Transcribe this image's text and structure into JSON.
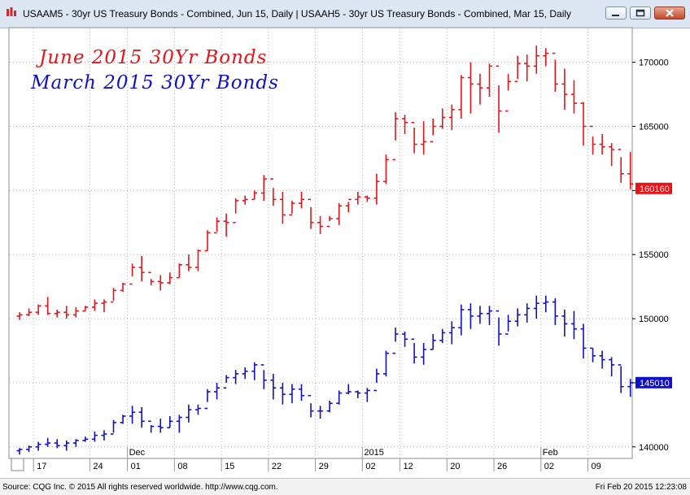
{
  "window": {
    "title": "USAAM5 - 30yr US Treasury Bonds - Combined, Jun 15, Daily  |  USAAH5 - 30yr US Treasury Bonds - Combined, Mar 15, Daily",
    "icon": "cqg-chart-icon",
    "buttons": [
      "minimize-icon",
      "maximize-icon",
      "close-icon"
    ]
  },
  "footer": {
    "source": "Source: CQG Inc. © 2015 All rights reserved worldwide. http://www.cqg.com.",
    "timestamp": "Fri Feb 20 2015 12:23:08"
  },
  "chart_data": {
    "type": "ohlc",
    "title": "",
    "annotations": [
      {
        "text": "June 2015 30Yr Bonds",
        "color": "#e8141a"
      },
      {
        "text": "March 2015 30Yr Bonds",
        "color": "#1010c8"
      }
    ],
    "y_axis": {
      "side": "right",
      "ylim": [
        139100,
        172700
      ],
      "ticks": [
        140000,
        145000,
        150000,
        155000,
        160000,
        165000,
        170000
      ],
      "tick_labels": [
        "140000",
        "145000",
        "150000",
        "155000",
        "160000",
        "165000",
        "170000"
      ]
    },
    "x_axis": {
      "day_labels": [
        "17",
        "24",
        "01",
        "08",
        "15",
        "22",
        "29",
        "02",
        "12",
        "20",
        "26",
        "02",
        "09",
        "17"
      ],
      "month_labels": [
        "Dec",
        "2015",
        "Feb"
      ],
      "session_count": 65
    },
    "grid": true,
    "colors": {
      "june": "#e8141a",
      "march": "#1010c8",
      "background": "#ffffff",
      "grid": "#b4b4b4"
    },
    "series": [
      {
        "name": "USAAM5",
        "last_value_label": "160160",
        "last_value": 160160,
        "bars": [
          [
            150200,
            150500,
            149900,
            150300
          ],
          [
            150300,
            150800,
            150200,
            150500
          ],
          [
            150500,
            151100,
            150300,
            151000
          ],
          [
            151000,
            151700,
            150300,
            150400
          ],
          [
            150400,
            150700,
            150100,
            150500
          ],
          [
            150500,
            151000,
            150000,
            150300
          ],
          [
            150300,
            150900,
            150100,
            150600
          ],
          [
            150600,
            151000,
            150600,
            150900
          ],
          [
            150900,
            151500,
            150600,
            151200
          ],
          [
            151200,
            151500,
            150500,
            151300
          ],
          [
            151300,
            152400,
            151400,
            152200
          ],
          [
            152200,
            152800,
            152100,
            152700
          ],
          [
            152700,
            154300,
            153300,
            154000
          ],
          [
            154000,
            154900,
            152900,
            153600
          ],
          [
            153600,
            153100,
            152600,
            152900
          ],
          [
            152900,
            153400,
            152200,
            152800
          ],
          [
            152800,
            153600,
            152700,
            153200
          ],
          [
            153200,
            154300,
            153200,
            154200
          ],
          [
            154200,
            155000,
            153700,
            154000
          ],
          [
            154000,
            155400,
            153700,
            155300
          ],
          [
            155300,
            156900,
            155300,
            156700
          ],
          [
            156700,
            157900,
            156800,
            157600
          ],
          [
            157600,
            158200,
            156400,
            157500
          ],
          [
            157500,
            159400,
            158200,
            159200
          ],
          [
            159200,
            159600,
            158900,
            159300
          ],
          [
            159300,
            160000,
            159300,
            159800
          ],
          [
            159800,
            161200,
            159200,
            160900
          ],
          [
            160900,
            160200,
            158800,
            159300
          ],
          [
            159300,
            159900,
            157400,
            158100
          ],
          [
            158100,
            159200,
            158200,
            159000
          ],
          [
            159000,
            159900,
            158600,
            159300
          ],
          [
            159300,
            158700,
            157000,
            157500
          ],
          [
            157500,
            158000,
            156600,
            157200
          ],
          [
            157200,
            158000,
            157600,
            157800
          ],
          [
            157800,
            159000,
            157300,
            158800
          ],
          [
            158800,
            159100,
            158300,
            159300
          ],
          [
            159300,
            159900,
            158900,
            159500
          ],
          [
            159500,
            159600,
            159100,
            159400
          ],
          [
            159400,
            161300,
            158900,
            160700
          ],
          [
            160700,
            162800,
            160500,
            162400
          ],
          [
            162400,
            166100,
            163900,
            165600
          ],
          [
            165600,
            165900,
            164400,
            165300
          ],
          [
            165300,
            164900,
            162900,
            163600
          ],
          [
            163600,
            165400,
            162800,
            163800
          ],
          [
            163800,
            165600,
            164300,
            165000
          ],
          [
            165000,
            166400,
            164800,
            165700
          ],
          [
            165700,
            166700,
            164700,
            166300
          ],
          [
            166300,
            169000,
            165600,
            168800
          ],
          [
            168800,
            170000,
            166000,
            168300
          ],
          [
            168300,
            169100,
            166700,
            168000
          ],
          [
            168000,
            169900,
            167300,
            169700
          ],
          [
            169700,
            168200,
            164500,
            166200
          ],
          [
            166200,
            169100,
            167800,
            168500
          ],
          [
            168500,
            170500,
            168700,
            169900
          ],
          [
            169900,
            170600,
            168500,
            169700
          ],
          [
            169700,
            171300,
            169100,
            170500
          ],
          [
            170500,
            171100,
            169700,
            170700
          ],
          [
            170700,
            170200,
            167700,
            168300
          ],
          [
            168300,
            169500,
            166300,
            167500
          ],
          [
            167500,
            168600,
            166000,
            166800
          ],
          [
            166800,
            166900,
            163500,
            165000
          ],
          [
            165000,
            164200,
            162800,
            163600
          ],
          [
            163600,
            164400,
            162800,
            163400
          ],
          [
            163400,
            163700,
            161900,
            163200
          ],
          [
            163200,
            162600,
            160600,
            161300
          ],
          [
            161300,
            163000,
            160100,
            160500
          ]
        ]
      },
      {
        "name": "USAAH5",
        "last_value_label": "145010",
        "last_value": 145010,
        "bars": [
          [
            139700,
            139900,
            139400,
            139800
          ],
          [
            139800,
            140100,
            139600,
            140000
          ],
          [
            140000,
            140400,
            139700,
            140200
          ],
          [
            140200,
            140700,
            140000,
            140300
          ],
          [
            140300,
            140600,
            139900,
            140100
          ],
          [
            140100,
            140500,
            139700,
            140300
          ],
          [
            140300,
            140600,
            140000,
            140500
          ],
          [
            140500,
            140800,
            140400,
            140600
          ],
          [
            140600,
            141200,
            140400,
            140900
          ],
          [
            140900,
            141300,
            140500,
            141000
          ],
          [
            141000,
            142100,
            141100,
            141900
          ],
          [
            141900,
            142500,
            141800,
            142400
          ],
          [
            142400,
            143200,
            141800,
            142700
          ],
          [
            142700,
            143100,
            141500,
            142000
          ],
          [
            142000,
            141700,
            141100,
            141600
          ],
          [
            141600,
            142200,
            141100,
            141500
          ],
          [
            141500,
            142400,
            141500,
            142000
          ],
          [
            142000,
            142500,
            141100,
            142300
          ],
          [
            142300,
            143300,
            141900,
            142900
          ],
          [
            142900,
            143300,
            142500,
            143000
          ],
          [
            143000,
            144500,
            143500,
            144300
          ],
          [
            144300,
            145000,
            143700,
            144600
          ],
          [
            144600,
            145600,
            145000,
            145400
          ],
          [
            145400,
            146000,
            144900,
            145700
          ],
          [
            145700,
            146200,
            145300,
            145900
          ],
          [
            145900,
            146600,
            145200,
            146400
          ],
          [
            146400,
            146000,
            144500,
            145200
          ],
          [
            145200,
            145700,
            143700,
            144600
          ],
          [
            144600,
            145000,
            143300,
            144100
          ],
          [
            144100,
            144900,
            143400,
            144500
          ],
          [
            144500,
            144900,
            143600,
            144000
          ],
          [
            144000,
            143400,
            142300,
            142800
          ],
          [
            142800,
            143200,
            142200,
            142800
          ],
          [
            142800,
            143600,
            142700,
            143400
          ],
          [
            143400,
            144400,
            143300,
            144200
          ],
          [
            144200,
            144900,
            144100,
            144300
          ],
          [
            144300,
            144400,
            143800,
            144200
          ],
          [
            144200,
            144600,
            143500,
            144400
          ],
          [
            144400,
            146100,
            145000,
            145700
          ],
          [
            145700,
            147500,
            145500,
            147300
          ],
          [
            147300,
            149300,
            148200,
            148800
          ],
          [
            148800,
            149000,
            147800,
            148400
          ],
          [
            148400,
            148100,
            146500,
            147000
          ],
          [
            147000,
            148100,
            146400,
            147600
          ],
          [
            147600,
            148800,
            147600,
            148300
          ],
          [
            148300,
            149200,
            148100,
            148900
          ],
          [
            148900,
            149800,
            148000,
            149300
          ],
          [
            149300,
            151100,
            148700,
            150700
          ],
          [
            150700,
            151200,
            149200,
            150200
          ],
          [
            150200,
            151000,
            149600,
            150400
          ],
          [
            150400,
            151000,
            149500,
            150600
          ],
          [
            150600,
            150100,
            147900,
            148800
          ],
          [
            148800,
            150300,
            149000,
            149800
          ],
          [
            149800,
            150800,
            149400,
            150300
          ],
          [
            150300,
            151200,
            149700,
            150800
          ],
          [
            150800,
            151800,
            150000,
            151200
          ],
          [
            151200,
            151800,
            150500,
            151300
          ],
          [
            151300,
            151600,
            149500,
            150200
          ],
          [
            150200,
            150700,
            148600,
            149600
          ],
          [
            149600,
            150600,
            148400,
            149200
          ],
          [
            149200,
            149600,
            146900,
            147700
          ],
          [
            147700,
            147700,
            146600,
            147100
          ],
          [
            147100,
            147500,
            146100,
            146800
          ],
          [
            146800,
            147000,
            145500,
            146400
          ],
          [
            146400,
            146300,
            144200,
            144700
          ],
          [
            144700,
            145300,
            143900,
            145000
          ]
        ]
      }
    ]
  }
}
